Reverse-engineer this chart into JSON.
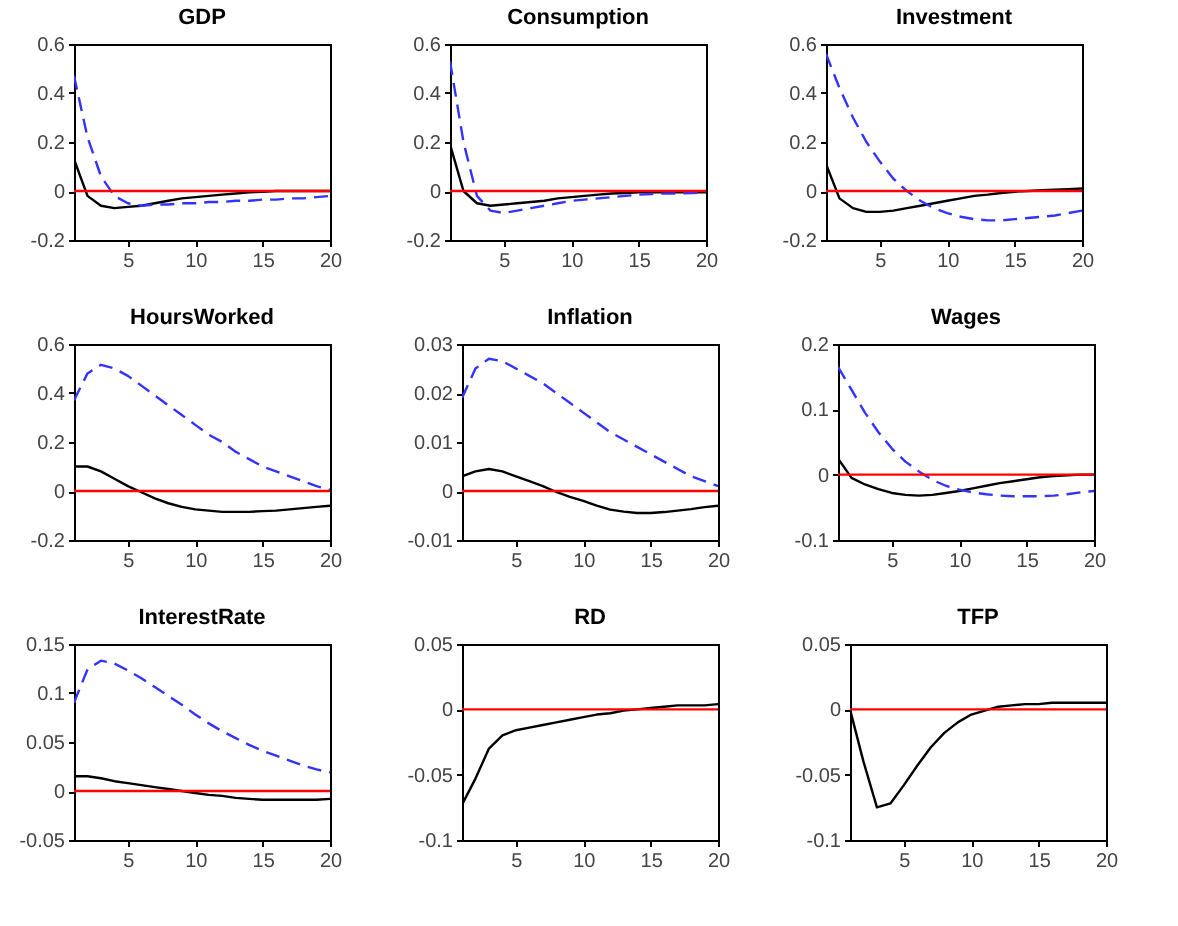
{
  "chart_data": [
    {
      "type": "line",
      "title": "GDP",
      "x": [
        1,
        2,
        3,
        4,
        5,
        6,
        7,
        8,
        9,
        10,
        11,
        12,
        13,
        14,
        15,
        16,
        17,
        18,
        19,
        20
      ],
      "xlim": [
        1,
        20
      ],
      "xticks": [
        5,
        10,
        15,
        20
      ],
      "ylim": [
        -0.2,
        0.6
      ],
      "yticks": [
        -0.2,
        0,
        0.2,
        0.4,
        0.6
      ],
      "grid": false,
      "ref_lines": [
        {
          "axis": "y",
          "value": 0,
          "color": "#ff0000"
        }
      ],
      "series": [
        {
          "color": "#000000",
          "line_style": "solid",
          "values": [
            0.13,
            -0.02,
            -0.06,
            -0.07,
            -0.065,
            -0.06,
            -0.05,
            -0.04,
            -0.03,
            -0.025,
            -0.02,
            -0.015,
            -0.01,
            -0.005,
            -0.003,
            0,
            0,
            0,
            0,
            0
          ]
        },
        {
          "color": "#3333ff",
          "line_style": "dashed",
          "values": [
            0.47,
            0.22,
            0.06,
            -0.02,
            -0.05,
            -0.06,
            -0.055,
            -0.055,
            -0.05,
            -0.05,
            -0.045,
            -0.045,
            -0.04,
            -0.04,
            -0.035,
            -0.035,
            -0.03,
            -0.03,
            -0.025,
            -0.02
          ]
        }
      ]
    },
    {
      "type": "line",
      "title": "Consumption",
      "x": [
        1,
        2,
        3,
        4,
        5,
        6,
        7,
        8,
        9,
        10,
        11,
        12,
        13,
        14,
        15,
        16,
        17,
        18,
        19,
        20
      ],
      "xlim": [
        1,
        20
      ],
      "xticks": [
        5,
        10,
        15,
        20
      ],
      "ylim": [
        -0.2,
        0.6
      ],
      "yticks": [
        -0.2,
        0,
        0.2,
        0.4,
        0.6
      ],
      "grid": false,
      "ref_lines": [
        {
          "axis": "y",
          "value": 0,
          "color": "#ff0000"
        }
      ],
      "series": [
        {
          "color": "#000000",
          "line_style": "solid",
          "values": [
            0.19,
            0,
            -0.05,
            -0.06,
            -0.055,
            -0.05,
            -0.045,
            -0.04,
            -0.03,
            -0.025,
            -0.02,
            -0.015,
            -0.01,
            -0.008,
            -0.005,
            -0.005,
            -0.005,
            -0.005,
            -0.005,
            -0.005
          ]
        },
        {
          "color": "#3333ff",
          "line_style": "dashed",
          "values": [
            0.53,
            0.2,
            -0.02,
            -0.08,
            -0.09,
            -0.08,
            -0.07,
            -0.06,
            -0.05,
            -0.04,
            -0.035,
            -0.03,
            -0.025,
            -0.02,
            -0.015,
            -0.012,
            -0.01,
            -0.01,
            -0.008,
            -0.005
          ]
        }
      ]
    },
    {
      "type": "line",
      "title": "Investment",
      "x": [
        1,
        2,
        3,
        4,
        5,
        6,
        7,
        8,
        9,
        10,
        11,
        12,
        13,
        14,
        15,
        16,
        17,
        18,
        19,
        20
      ],
      "xlim": [
        1,
        20
      ],
      "xticks": [
        5,
        10,
        15,
        20
      ],
      "ylim": [
        -0.2,
        0.6
      ],
      "yticks": [
        -0.2,
        0,
        0.2,
        0.4,
        0.6
      ],
      "grid": false,
      "ref_lines": [
        {
          "axis": "y",
          "value": 0,
          "color": "#ff0000"
        }
      ],
      "series": [
        {
          "color": "#000000",
          "line_style": "solid",
          "values": [
            0.11,
            -0.03,
            -0.07,
            -0.085,
            -0.085,
            -0.08,
            -0.07,
            -0.06,
            -0.05,
            -0.04,
            -0.03,
            -0.02,
            -0.015,
            -0.008,
            -0.003,
            0,
            0.003,
            0.005,
            0.007,
            0.01
          ]
        },
        {
          "color": "#3333ff",
          "line_style": "dashed",
          "values": [
            0.56,
            0.42,
            0.3,
            0.2,
            0.12,
            0.05,
            0,
            -0.04,
            -0.07,
            -0.09,
            -0.105,
            -0.115,
            -0.12,
            -0.12,
            -0.115,
            -0.11,
            -0.105,
            -0.1,
            -0.09,
            -0.08
          ]
        }
      ]
    },
    {
      "type": "line",
      "title": "HoursWorked",
      "x": [
        1,
        2,
        3,
        4,
        5,
        6,
        7,
        8,
        9,
        10,
        11,
        12,
        13,
        14,
        15,
        16,
        17,
        18,
        19,
        20
      ],
      "xlim": [
        1,
        20
      ],
      "xticks": [
        5,
        10,
        15,
        20
      ],
      "ylim": [
        -0.2,
        0.6
      ],
      "yticks": [
        -0.2,
        0,
        0.2,
        0.4,
        0.6
      ],
      "grid": false,
      "ref_lines": [
        {
          "axis": "y",
          "value": 0,
          "color": "#ff0000"
        }
      ],
      "series": [
        {
          "color": "#000000",
          "line_style": "solid",
          "values": [
            0.1,
            0.1,
            0.08,
            0.05,
            0.02,
            -0.005,
            -0.03,
            -0.05,
            -0.065,
            -0.075,
            -0.08,
            -0.085,
            -0.085,
            -0.085,
            -0.082,
            -0.08,
            -0.075,
            -0.07,
            -0.065,
            -0.06
          ]
        },
        {
          "color": "#3333ff",
          "line_style": "dashed",
          "values": [
            0.37,
            0.48,
            0.515,
            0.5,
            0.47,
            0.43,
            0.39,
            0.35,
            0.31,
            0.27,
            0.23,
            0.2,
            0.16,
            0.13,
            0.1,
            0.08,
            0.06,
            0.04,
            0.02,
            0.005
          ]
        }
      ]
    },
    {
      "type": "line",
      "title": "Inflation",
      "x": [
        1,
        2,
        3,
        4,
        5,
        6,
        7,
        8,
        9,
        10,
        11,
        12,
        13,
        14,
        15,
        16,
        17,
        18,
        19,
        20
      ],
      "xlim": [
        1,
        20
      ],
      "xticks": [
        5,
        10,
        15,
        20
      ],
      "ylim": [
        -0.01,
        0.03
      ],
      "yticks": [
        -0.01,
        0,
        0.01,
        0.02,
        0.03
      ],
      "grid": false,
      "ref_lines": [
        {
          "axis": "y",
          "value": 0,
          "color": "#ff0000"
        }
      ],
      "series": [
        {
          "color": "#000000",
          "line_style": "solid",
          "values": [
            0.003,
            0.004,
            0.0045,
            0.004,
            0.003,
            0.002,
            0.001,
            -0.0002,
            -0.0012,
            -0.002,
            -0.003,
            -0.0038,
            -0.0042,
            -0.0045,
            -0.0045,
            -0.0043,
            -0.004,
            -0.0037,
            -0.0033,
            -0.003
          ]
        },
        {
          "color": "#3333ff",
          "line_style": "dashed",
          "values": [
            0.019,
            0.025,
            0.027,
            0.0265,
            0.025,
            0.0235,
            0.022,
            0.02,
            0.018,
            0.016,
            0.014,
            0.012,
            0.0105,
            0.009,
            0.0075,
            0.006,
            0.0045,
            0.003,
            0.002,
            0.001
          ]
        }
      ]
    },
    {
      "type": "line",
      "title": "Wages",
      "x": [
        1,
        2,
        3,
        4,
        5,
        6,
        7,
        8,
        9,
        10,
        11,
        12,
        13,
        14,
        15,
        16,
        17,
        18,
        19,
        20
      ],
      "xlim": [
        1,
        20
      ],
      "xticks": [
        5,
        10,
        15,
        20
      ],
      "ylim": [
        -0.1,
        0.2
      ],
      "yticks": [
        -0.1,
        0,
        0.1,
        0.2
      ],
      "grid": false,
      "ref_lines": [
        {
          "axis": "y",
          "value": 0,
          "color": "#ff0000"
        }
      ],
      "series": [
        {
          "color": "#000000",
          "line_style": "solid",
          "values": [
            0.025,
            -0.005,
            -0.015,
            -0.022,
            -0.028,
            -0.031,
            -0.032,
            -0.031,
            -0.028,
            -0.025,
            -0.021,
            -0.017,
            -0.013,
            -0.01,
            -0.007,
            -0.004,
            -0.002,
            -0.001,
            0,
            0
          ]
        },
        {
          "color": "#3333ff",
          "line_style": "dashed",
          "values": [
            0.165,
            0.13,
            0.095,
            0.065,
            0.04,
            0.02,
            0.005,
            -0.008,
            -0.017,
            -0.023,
            -0.027,
            -0.03,
            -0.032,
            -0.033,
            -0.033,
            -0.033,
            -0.032,
            -0.03,
            -0.027,
            -0.025
          ]
        }
      ]
    },
    {
      "type": "line",
      "title": "InterestRate",
      "x": [
        1,
        2,
        3,
        4,
        5,
        6,
        7,
        8,
        9,
        10,
        11,
        12,
        13,
        14,
        15,
        16,
        17,
        18,
        19,
        20
      ],
      "xlim": [
        1,
        20
      ],
      "xticks": [
        5,
        10,
        15,
        20
      ],
      "ylim": [
        -0.05,
        0.15
      ],
      "yticks": [
        -0.05,
        0,
        0.05,
        0.1,
        0.15
      ],
      "grid": false,
      "ref_lines": [
        {
          "axis": "y",
          "value": 0,
          "color": "#ff0000"
        }
      ],
      "series": [
        {
          "color": "#000000",
          "line_style": "solid",
          "values": [
            0.015,
            0.015,
            0.013,
            0.01,
            0.008,
            0.006,
            0.004,
            0.002,
            0,
            -0.002,
            -0.004,
            -0.005,
            -0.007,
            -0.008,
            -0.009,
            -0.009,
            -0.009,
            -0.009,
            -0.009,
            -0.008
          ]
        },
        {
          "color": "#3333ff",
          "line_style": "dashed",
          "values": [
            0.09,
            0.124,
            0.133,
            0.13,
            0.123,
            0.115,
            0.106,
            0.097,
            0.088,
            0.078,
            0.069,
            0.061,
            0.054,
            0.047,
            0.041,
            0.036,
            0.031,
            0.026,
            0.022,
            0.019
          ]
        }
      ]
    },
    {
      "type": "line",
      "title": "RD",
      "x": [
        1,
        2,
        3,
        4,
        5,
        6,
        7,
        8,
        9,
        10,
        11,
        12,
        13,
        14,
        15,
        16,
        17,
        18,
        19,
        20
      ],
      "xlim": [
        1,
        20
      ],
      "xticks": [
        5,
        10,
        15,
        20
      ],
      "ylim": [
        -0.1,
        0.05
      ],
      "yticks": [
        -0.1,
        -0.05,
        0,
        0.05
      ],
      "grid": false,
      "ref_lines": [
        {
          "axis": "y",
          "value": 0,
          "color": "#ff0000"
        }
      ],
      "series": [
        {
          "color": "#000000",
          "line_style": "solid",
          "values": [
            -0.073,
            -0.053,
            -0.03,
            -0.02,
            -0.016,
            -0.014,
            -0.012,
            -0.01,
            -0.008,
            -0.006,
            -0.004,
            -0.003,
            -0.001,
            0,
            0.001,
            0.002,
            0.003,
            0.003,
            0.003,
            0.004
          ]
        }
      ]
    },
    {
      "type": "line",
      "title": "TFP",
      "x": [
        1,
        2,
        3,
        4,
        5,
        6,
        7,
        8,
        9,
        10,
        11,
        12,
        13,
        14,
        15,
        16,
        17,
        18,
        19,
        20
      ],
      "xlim": [
        1,
        20
      ],
      "xticks": [
        5,
        10,
        15,
        20
      ],
      "ylim": [
        -0.1,
        0.05
      ],
      "yticks": [
        -0.1,
        -0.05,
        0,
        0.05
      ],
      "grid": false,
      "ref_lines": [
        {
          "axis": "y",
          "value": 0,
          "color": "#ff0000"
        }
      ],
      "series": [
        {
          "color": "#000000",
          "line_style": "solid",
          "values": [
            0,
            -0.04,
            -0.075,
            -0.072,
            -0.058,
            -0.043,
            -0.029,
            -0.018,
            -0.01,
            -0.004,
            -0.001,
            0.002,
            0.003,
            0.004,
            0.004,
            0.005,
            0.005,
            0.005,
            0.005,
            0.005
          ]
        }
      ]
    }
  ]
}
